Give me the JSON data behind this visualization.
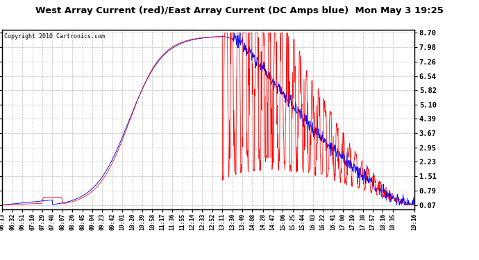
{
  "title": "West Array Current (red)/East Array Current (DC Amps blue)  Mon May 3 19:25",
  "copyright": "Copyright 2010 Cartronics.com",
  "y_ticks": [
    0.07,
    0.79,
    1.51,
    2.23,
    2.95,
    3.67,
    4.39,
    5.1,
    5.82,
    6.54,
    7.26,
    7.98,
    8.7
  ],
  "y_min": 0.07,
  "y_max": 8.7,
  "background_color": "#ffffff",
  "grid_color": "#aaaaaa",
  "red_color": "#ff0000",
  "blue_color": "#0000ff",
  "x_labels": [
    "06:13",
    "06:32",
    "06:51",
    "07:10",
    "07:29",
    "07:48",
    "08:07",
    "08:26",
    "08:45",
    "09:04",
    "09:23",
    "09:42",
    "10:01",
    "10:20",
    "10:39",
    "10:58",
    "11:17",
    "11:36",
    "11:55",
    "12:14",
    "12:33",
    "12:52",
    "13:11",
    "13:30",
    "13:49",
    "14:08",
    "14:28",
    "14:47",
    "15:06",
    "15:25",
    "15:44",
    "16:03",
    "16:22",
    "16:41",
    "17:00",
    "17:19",
    "17:38",
    "17:57",
    "18:16",
    "18:35",
    "19:16"
  ]
}
